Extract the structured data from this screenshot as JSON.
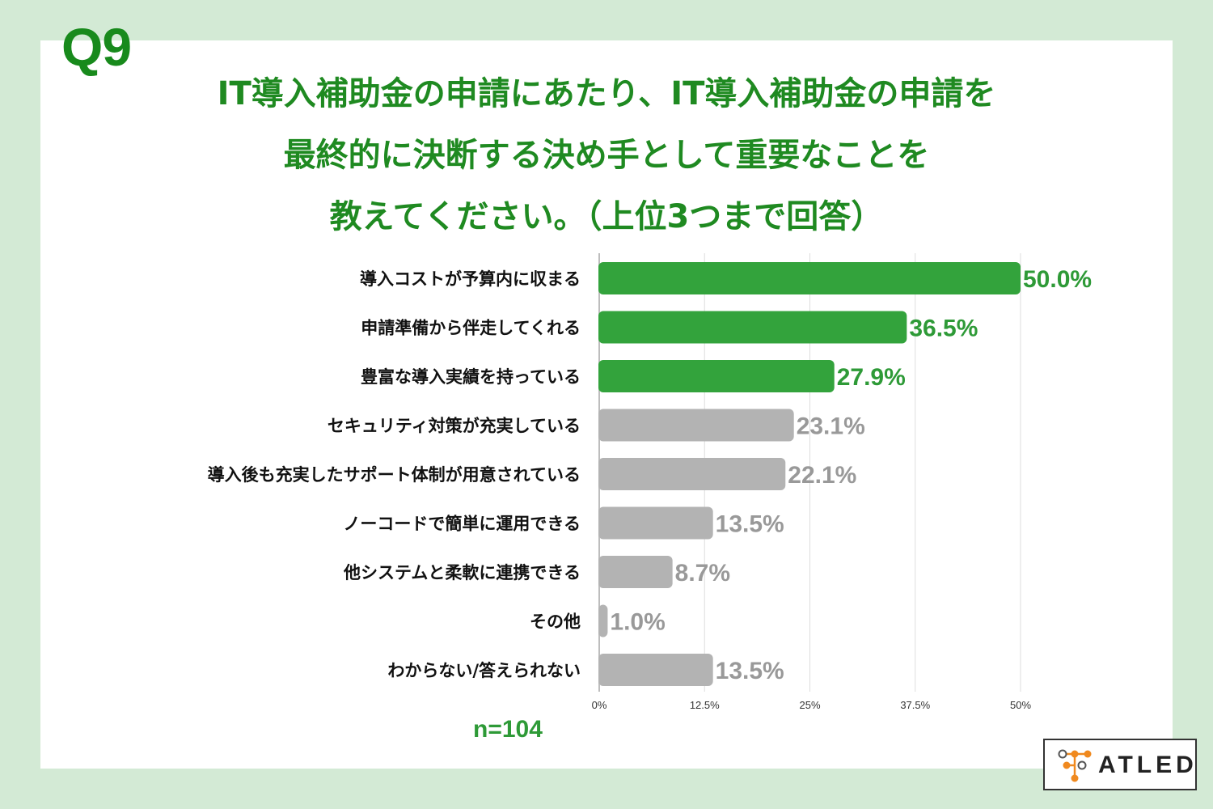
{
  "question_number": "Q9",
  "title_lines": [
    "IT導入補助金の申請にあたり、IT導入補助金の申請を",
    "最終的に決断する決め手として重要なことを",
    "教えてください。（上位3つまで回答）"
  ],
  "sample_size": "n=104",
  "logo_text": "ATLED",
  "colors": {
    "background": "#d3ead5",
    "title": "#1f8a21",
    "highlight_bar": "#33a33c",
    "other_bar": "#b3b3b3",
    "highlight_label": "#2e9a37",
    "other_label": "#999999",
    "logo_orange": "#f0891e"
  },
  "chart_data": {
    "type": "bar",
    "orientation": "horizontal",
    "categories": [
      "導入コストが予算内に収まる",
      "申請準備から伴走してくれる",
      "豊富な導入実績を持っている",
      "セキュリティ対策が充実している",
      "導入後も充実したサポート体制が用意されている",
      "ノーコードで簡単に運用できる",
      "他システムと柔軟に連携できる",
      "その他",
      "わからない/答えられない"
    ],
    "values": [
      50.0,
      36.5,
      27.9,
      23.1,
      22.1,
      13.5,
      8.7,
      1.0,
      13.5
    ],
    "value_labels": [
      "50.0%",
      "36.5%",
      "27.9%",
      "23.1%",
      "22.1%",
      "13.5%",
      "8.7%",
      "1.0%",
      "13.5%"
    ],
    "highlighted_count": 3,
    "xlim": [
      0,
      50
    ],
    "xticks": [
      0,
      12.5,
      25,
      37.5,
      50
    ],
    "xtick_labels": [
      "0%",
      "12.5%",
      "25%",
      "37.5%",
      "50%"
    ],
    "grid": true,
    "unit": "%"
  }
}
